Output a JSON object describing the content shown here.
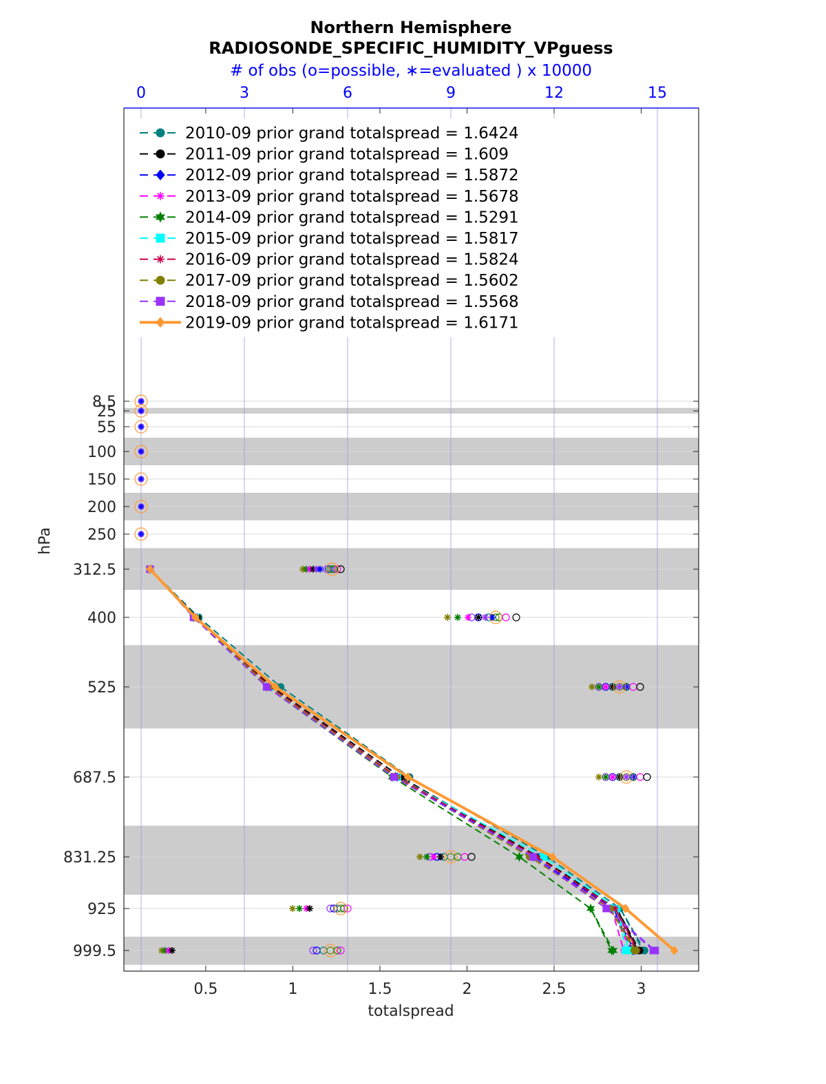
{
  "chart_data": {
    "type": "line",
    "title": "Northern Hemisphere",
    "subtitle": "RADIOSONDE_SPECIFIC_HUMIDITY_VPguess",
    "top_axis_label": "# of obs (o=possible, ∗=evaluated ) x 10000",
    "xlabel": "totalspread",
    "ylabel": "hPa",
    "xlim": [
      0.03,
      3.33
    ],
    "x_ticks": [
      0.5,
      1,
      1.5,
      2,
      2.5,
      3
    ],
    "x_tick_labels": [
      "0.5",
      "1",
      "1.5",
      "2",
      "2.5",
      "3"
    ],
    "top_xlim": [
      -0.5,
      16.2
    ],
    "top_ticks": [
      0,
      3,
      6,
      9,
      12,
      15
    ],
    "top_tick_labels": [
      "0",
      "3",
      "6",
      "9",
      "12",
      "15"
    ],
    "y_ticks": [
      8.5,
      25,
      55,
      100,
      150,
      200,
      250,
      312.5,
      400,
      525,
      687.5,
      831.25,
      925,
      999.5
    ],
    "y_tick_labels": [
      "8.5",
      "25",
      "55",
      "100",
      "150",
      "200",
      "250",
      "312.5",
      "400",
      "525",
      "687.5",
      "831.25",
      "925",
      "999.5"
    ],
    "shaded_layers": [
      [
        20,
        30
      ],
      [
        75,
        125
      ],
      [
        175,
        225
      ],
      [
        275,
        350
      ],
      [
        450,
        600
      ],
      [
        775,
        900
      ],
      [
        975,
        1025
      ]
    ],
    "levels": [
      312.5,
      400,
      525,
      687.5,
      831.25,
      925,
      999.5
    ],
    "series": [
      {
        "name": "2010-09 prior grand totalspread = 1.6424",
        "color": "#008080",
        "marker": "circle",
        "width": 2,
        "dash": true,
        "values": [
          0.18,
          0.46,
          0.93,
          1.67,
          2.46,
          2.88,
          3.01
        ],
        "surface": 3.02
      },
      {
        "name": "2011-09 prior grand totalspread = 1.609",
        "color": "#000000",
        "marker": "circle",
        "width": 2,
        "dash": true,
        "values": [
          0.18,
          0.45,
          0.88,
          1.62,
          2.41,
          2.86,
          2.98
        ],
        "surface": 2.99
      },
      {
        "name": "2012-09 prior grand totalspread = 1.5872",
        "color": "#0000ff",
        "marker": "diamond",
        "width": 2,
        "dash": true,
        "values": [
          0.18,
          0.44,
          0.87,
          1.6,
          2.38,
          2.84,
          2.95
        ],
        "surface": 2.96
      },
      {
        "name": "2013-09 prior grand totalspread = 1.5678",
        "color": "#ff00ff",
        "marker": "asterisk",
        "width": 2,
        "dash": true,
        "values": [
          0.18,
          0.44,
          0.86,
          1.59,
          2.36,
          2.83,
          2.94
        ],
        "surface": 2.9
      },
      {
        "name": "2014-09 prior grand totalspread = 1.5291",
        "color": "#008000",
        "marker": "hexagram",
        "width": 2,
        "dash": true,
        "values": [
          0.18,
          0.43,
          0.85,
          1.57,
          2.3,
          2.71,
          2.83
        ],
        "surface": 2.84
      },
      {
        "name": "2015-09 prior grand totalspread = 1.5817",
        "color": "#00ffff",
        "marker": "square",
        "width": 2,
        "dash": true,
        "values": [
          0.18,
          0.44,
          0.87,
          1.6,
          2.44,
          2.86,
          2.91
        ],
        "surface": 2.93
      },
      {
        "name": "2016-09 prior grand totalspread = 1.5824",
        "color": "#cc0044",
        "marker": "asterisk",
        "width": 2,
        "dash": true,
        "values": [
          0.18,
          0.44,
          0.87,
          1.6,
          2.4,
          2.85,
          2.97
        ],
        "surface": 2.98
      },
      {
        "name": "2017-09 prior grand totalspread = 1.5602",
        "color": "#808000",
        "marker": "circle",
        "width": 2,
        "dash": true,
        "values": [
          0.18,
          0.44,
          0.86,
          1.59,
          2.36,
          2.82,
          2.96
        ],
        "surface": 2.97
      },
      {
        "name": "2018-09 prior grand totalspread = 1.5568",
        "color": "#9933ff",
        "marker": "square",
        "width": 2,
        "dash": true,
        "values": [
          0.18,
          0.43,
          0.85,
          1.58,
          2.38,
          2.8,
          3.07
        ],
        "surface": 3.08
      },
      {
        "name": "2019-09 prior grand totalspread = 1.6171",
        "color": "#ff9933",
        "marker": "diamond",
        "width": 4,
        "dash": false,
        "values": [
          0.18,
          0.44,
          0.9,
          1.66,
          2.49,
          2.91,
          3.19
        ],
        "surface": 3.19
      }
    ],
    "obs_counts": {
      "upper_levels": [
        8.5,
        25,
        55,
        100,
        150,
        200,
        250
      ],
      "upper_possible": 0,
      "rows": [
        {
          "level": 312.5,
          "possible": [
            5.4,
            5.45,
            5.5,
            5.55,
            5.6,
            5.7,
            5.8
          ],
          "evaluated": [
            4.7,
            4.8,
            4.9,
            5.0,
            5.1,
            5.2
          ]
        },
        {
          "level": 400,
          "possible": [
            9.6,
            9.8,
            10.1,
            10.3,
            10.4,
            10.6,
            10.9
          ],
          "evaluated": [
            8.9,
            9.2,
            9.5,
            9.8,
            10.0,
            10.2
          ]
        },
        {
          "level": 525,
          "possible": [
            13.3,
            13.5,
            13.7,
            13.9,
            14.1,
            14.3,
            14.5
          ],
          "evaluated": [
            13.1,
            13.3,
            13.5,
            13.7,
            13.9,
            14.1
          ]
        },
        {
          "level": 687.5,
          "possible": [
            13.5,
            13.7,
            13.9,
            14.1,
            14.3,
            14.5,
            14.7
          ],
          "evaluated": [
            13.3,
            13.5,
            13.7,
            13.9,
            14.1,
            14.3
          ]
        },
        {
          "level": 831.25,
          "possible": [
            8.4,
            8.6,
            8.8,
            9.0,
            9.2,
            9.4,
            9.6
          ],
          "evaluated": [
            8.1,
            8.3,
            8.5,
            8.7
          ]
        },
        {
          "level": 925,
          "possible": [
            5.5,
            5.6,
            5.7,
            5.8,
            5.9,
            6.0
          ],
          "evaluated": [
            4.4,
            4.6,
            4.8,
            4.9
          ]
        },
        {
          "level": 999.5,
          "possible": [
            5.0,
            5.1,
            5.3,
            5.5,
            5.7,
            5.8
          ],
          "evaluated": [
            0.6,
            0.7,
            0.8,
            0.9
          ]
        }
      ]
    }
  }
}
